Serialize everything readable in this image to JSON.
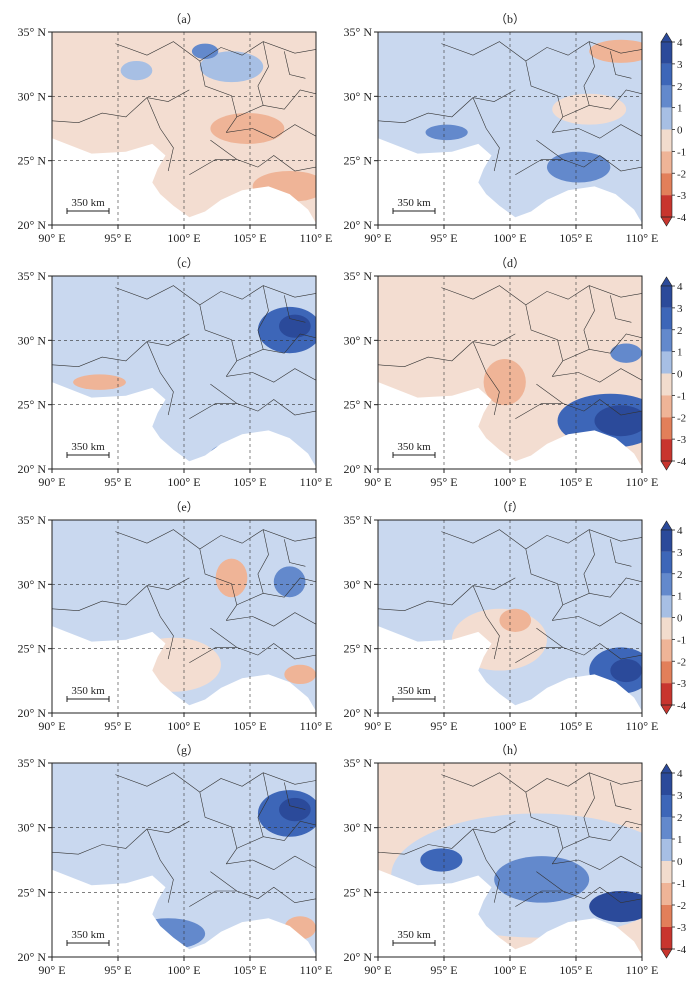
{
  "panels": [
    {
      "label": "（a）",
      "scale": "350 km"
    },
    {
      "label": "（b）",
      "scale": "350 km"
    },
    {
      "label": "（c）",
      "scale": "350 km"
    },
    {
      "label": "（d）",
      "scale": "350 km"
    },
    {
      "label": "（e）",
      "scale": "350 km"
    },
    {
      "label": "（f）",
      "scale": "350 km"
    },
    {
      "label": "（g）",
      "scale": "350 km"
    },
    {
      "label": "（h）",
      "scale": "350 km"
    }
  ],
  "x_ticks": [
    "90° E",
    "95° E",
    "100° E",
    "105° E",
    "110° E"
  ],
  "y_ticks": [
    "35° N",
    "30° N",
    "25° N",
    "20° N"
  ],
  "colorbar": {
    "ticks": [
      "4",
      "3",
      "2",
      "1",
      "0",
      "-1",
      "-2",
      "-3",
      "-4"
    ],
    "colors": [
      "#2b4a9a",
      "#3d66b8",
      "#6389cc",
      "#a7bfe4",
      "#d6e1f1",
      "#f2dccd",
      "#efb497",
      "#e27f5a",
      "#c8352e"
    ]
  }
}
